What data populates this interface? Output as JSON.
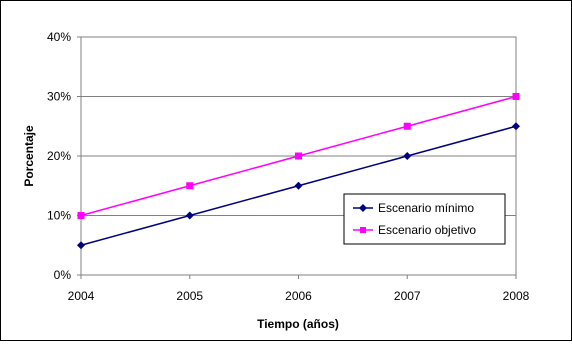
{
  "chart_data": {
    "type": "line",
    "title": "",
    "xlabel": "Tiempo (años)",
    "ylabel": "Porcentaje",
    "x": [
      "2004",
      "2005",
      "2006",
      "2007",
      "2008"
    ],
    "yticks": [
      "0%",
      "10%",
      "20%",
      "30%",
      "40%"
    ],
    "ylim": [
      0,
      40
    ],
    "grid": "horizontal",
    "legend_position": "lower-right",
    "series": [
      {
        "name": "Escenario mínimo",
        "values": [
          5,
          10,
          15,
          20,
          25
        ],
        "color": "#000080",
        "marker": "diamond"
      },
      {
        "name": "Escenario objetivo",
        "values": [
          10,
          15,
          20,
          25,
          30
        ],
        "color": "#ff00ff",
        "marker": "square"
      }
    ]
  }
}
